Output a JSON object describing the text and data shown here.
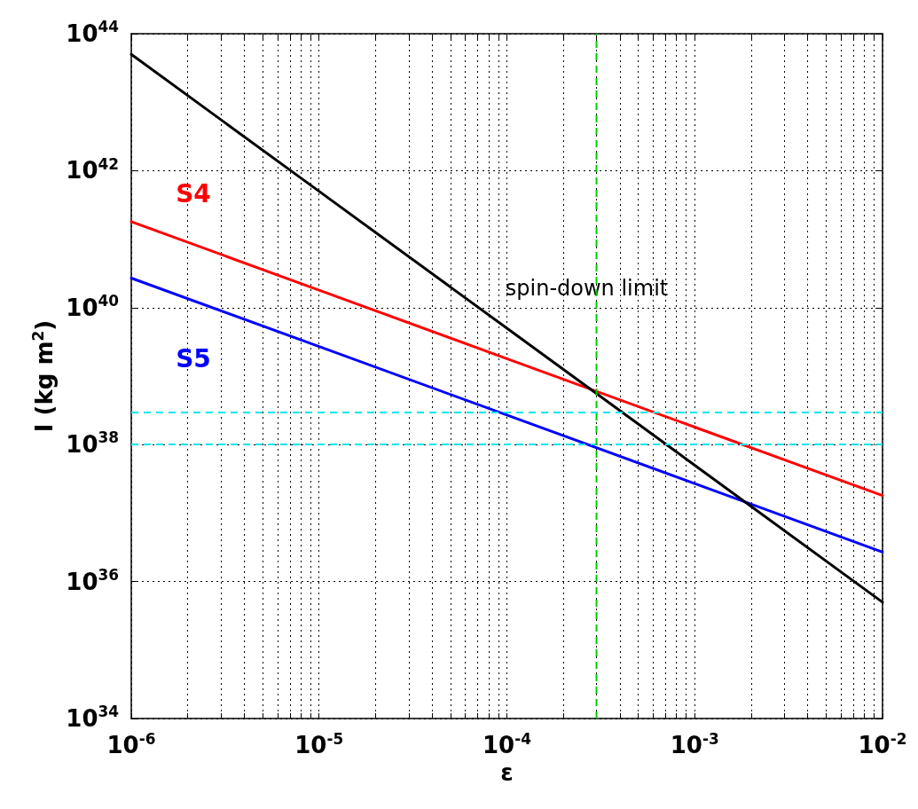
{
  "chart_data": {
    "type": "line",
    "xlabel": "ε",
    "ylabel": "I (kg m$^{2}$)",
    "log": "xy",
    "grid": true,
    "legend": false,
    "marker": "none",
    "line_style": "solid",
    "x": [
      1e-06,
      1e-05,
      0.0001,
      0.001,
      0.01
    ],
    "series": [
      {
        "name": "spin-down limit",
        "color": "#000000",
        "values": [
          5e+43,
          5e+41,
          5e+39,
          5e+37,
          5e+35
        ]
      },
      {
        "name": "S4",
        "color": "#ff0000",
        "values": [
          1.8e+41,
          1.8e+40,
          1.8e+39,
          1.8e+38,
          1.8e+37
        ]
      },
      {
        "name": "S5",
        "color": "#0000ff",
        "values": [
          2.7e+40,
          2.7e+39,
          2.7e+38,
          2.7e+37,
          2.7e+36
        ]
      }
    ],
    "ref_lines": [
      {
        "axis": "y",
        "value": 3e+38,
        "color": "#00e5ee",
        "line_style": "dashed"
      },
      {
        "axis": "y",
        "value": 1e+38,
        "color": "#00e5ee",
        "line_style": "dashed"
      },
      {
        "axis": "x",
        "value": 0.0003,
        "color": "#00cc00",
        "line_style": "dashed"
      }
    ],
    "xlim": [
      1e-06,
      0.01
    ],
    "ylim": [
      1e+34,
      1e+44
    ],
    "xticks": [
      {
        "value": 1e-06,
        "label": "10$^{-6}$"
      },
      {
        "value": 2e-06,
        "label": null
      },
      {
        "value": 3e-06,
        "label": null
      },
      {
        "value": 4e-06,
        "label": null
      },
      {
        "value": 5e-06,
        "label": null
      },
      {
        "value": 6e-06,
        "label": null
      },
      {
        "value": 7e-06,
        "label": null
      },
      {
        "value": 8e-06,
        "label": null
      },
      {
        "value": 9e-06,
        "label": null
      },
      {
        "value": 1e-05,
        "label": "10$^{-5}$"
      },
      {
        "value": 2e-05,
        "label": null
      },
      {
        "value": 3e-05,
        "label": null
      },
      {
        "value": 4e-05,
        "label": null
      },
      {
        "value": 5e-05,
        "label": null
      },
      {
        "value": 6e-05,
        "label": null
      },
      {
        "value": 7e-05,
        "label": null
      },
      {
        "value": 8e-05,
        "label": null
      },
      {
        "value": 9e-05,
        "label": null
      },
      {
        "value": 0.0001,
        "label": "10$^{-4}$"
      },
      {
        "value": 0.0002,
        "label": null
      },
      {
        "value": 0.0003,
        "label": null
      },
      {
        "value": 0.0004,
        "label": null
      },
      {
        "value": 0.0005,
        "label": null
      },
      {
        "value": 0.0006,
        "label": null
      },
      {
        "value": 0.0007,
        "label": null
      },
      {
        "value": 0.0008,
        "label": null
      },
      {
        "value": 0.0009,
        "label": null
      },
      {
        "value": 0.001,
        "label": "10$^{-3}$"
      },
      {
        "value": 0.002,
        "label": null
      },
      {
        "value": 0.003,
        "label": null
      },
      {
        "value": 0.004,
        "label": null
      },
      {
        "value": 0.005,
        "label": null
      },
      {
        "value": 0.006,
        "label": null
      },
      {
        "value": 0.007,
        "label": null
      },
      {
        "value": 0.008,
        "label": null
      },
      {
        "value": 0.009,
        "label": null
      },
      {
        "value": 0.01,
        "label": "10$^{-2}$"
      }
    ],
    "yticks": [
      {
        "value": 1e+34,
        "label": "10$^{34}$"
      },
      {
        "value": 1e+36,
        "label": "10$^{36}$"
      },
      {
        "value": 1e+38,
        "label": "10$^{38}$"
      },
      {
        "value": 1e+40,
        "label": "10$^{40}$"
      },
      {
        "value": 1e+42,
        "label": "10$^{42}$"
      },
      {
        "value": 1e+44,
        "label": "10$^{44}$"
      }
    ]
  }
}
